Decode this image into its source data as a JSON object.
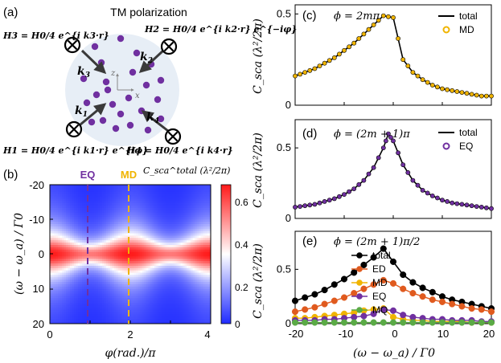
{
  "panel_labels": {
    "a": "(a)",
    "b": "(b)",
    "c": "(c)",
    "d": "(d)",
    "e": "(e)"
  },
  "schematic": {
    "title": "TM polarization",
    "H3": "H3 = H0/4 e^{i k3·r}",
    "H2": "H2 = H0/4 e^{i k2·r} e^{−iφ}",
    "H1": "H1 = H0/4 e^{i k1·r} e^{iφ}",
    "H4": "H4 = H0/4 e^{i k4·r}",
    "k1": "k",
    "k2": "k",
    "k3": "k",
    "k4": "k",
    "k1_sub": "1",
    "k2_sub": "2",
    "k3_sub": "3",
    "k4_sub": "4",
    "axis_z": "z",
    "axis_x": "x",
    "colors": {
      "disk": "#e7eef6",
      "atom": "#7030a0",
      "arrow": "#3a3a3a"
    }
  },
  "heatmap": {
    "colorbar_title": "C_sca^total (λ²/2π)",
    "ylabel": "(ω − ω_a) / Γ0",
    "xlabel": "φ(rad.)/π",
    "x_ticks": [
      "0",
      "2",
      "4"
    ],
    "y_ticks": [
      "-20",
      "-10",
      "0",
      "10",
      "20"
    ],
    "cbar_ticks": [
      "0.6",
      "0.4",
      "0.2",
      "0"
    ],
    "marker_EQ": "EQ",
    "marker_MD": "MD",
    "colors": {
      "low": "#1f2bff",
      "mid": "#ffffff",
      "high": "#ff1a1a",
      "EQ": "#7030a0",
      "MD": "#f0b400"
    }
  },
  "panel_c": {
    "annotation": "ϕ = 2mπ",
    "legend": [
      "total",
      "MD"
    ]
  },
  "panel_d": {
    "annotation": "ϕ = (2m + 1)π",
    "legend": [
      "total",
      "EQ"
    ]
  },
  "panel_e": {
    "annotation": "ϕ = (2m + 1)π/2",
    "legend": [
      "total",
      "ED",
      "MD",
      "EQ",
      "MQ"
    ]
  },
  "shared_axes": {
    "ylabel": "C_sca (λ²/2π)",
    "xlabel": "(ω − ω_a) / Γ0",
    "x_ticks": [
      "-20",
      "-10",
      "0",
      "10",
      "20"
    ]
  },
  "chart_data": [
    {
      "type": "heatmap",
      "x_range": [
        0,
        4
      ],
      "y_range": [
        -20,
        20
      ],
      "color_range": [
        0,
        0.65
      ],
      "title": "C_sca^total (λ²/2π)",
      "xlabel": "φ(rad.)/π",
      "ylabel": "(ω − ω_a) / Γ0",
      "markers": [
        {
          "label": "EQ",
          "x": 1
        },
        {
          "label": "MD",
          "x": 2
        }
      ]
    },
    {
      "type": "line",
      "title": "ϕ = 2mπ",
      "xlim": [
        -20,
        20
      ],
      "ylim": [
        0,
        0.55
      ],
      "y_ticks": [
        0,
        0.5
      ],
      "x": [
        -20,
        -18,
        -16,
        -14,
        -12,
        -10,
        -8,
        -6,
        -4,
        -2,
        0,
        2,
        4,
        6,
        8,
        10,
        12,
        14,
        16,
        18,
        20
      ],
      "series": [
        {
          "name": "total",
          "style": "line",
          "color": "#000000",
          "values": [
            0.16,
            0.18,
            0.2,
            0.23,
            0.26,
            0.3,
            0.34,
            0.39,
            0.44,
            0.49,
            0.48,
            0.25,
            0.18,
            0.14,
            0.11,
            0.09,
            0.08,
            0.07,
            0.06,
            0.05,
            0.05
          ]
        },
        {
          "name": "MD",
          "style": "markers",
          "color": "#f0b400",
          "values": [
            0.16,
            0.18,
            0.2,
            0.23,
            0.26,
            0.3,
            0.34,
            0.39,
            0.44,
            0.49,
            0.48,
            0.25,
            0.18,
            0.14,
            0.11,
            0.09,
            0.08,
            0.07,
            0.06,
            0.05,
            0.05
          ]
        }
      ]
    },
    {
      "type": "line",
      "title": "ϕ = (2m + 1)π",
      "xlim": [
        -20,
        20
      ],
      "ylim": [
        0,
        0.7
      ],
      "y_ticks": [
        0,
        0.5
      ],
      "x": [
        -20,
        -18,
        -16,
        -14,
        -12,
        -10,
        -8,
        -6,
        -4,
        -2,
        -1,
        0,
        2,
        4,
        6,
        8,
        10,
        12,
        14,
        16,
        18,
        20
      ],
      "series": [
        {
          "name": "total",
          "style": "line",
          "color": "#000000",
          "values": [
            0.08,
            0.09,
            0.1,
            0.12,
            0.14,
            0.17,
            0.21,
            0.27,
            0.36,
            0.5,
            0.6,
            0.55,
            0.38,
            0.27,
            0.2,
            0.16,
            0.13,
            0.11,
            0.1,
            0.09,
            0.08,
            0.07
          ]
        },
        {
          "name": "EQ",
          "style": "markers",
          "color": "#7030a0",
          "values": [
            0.08,
            0.09,
            0.1,
            0.12,
            0.14,
            0.17,
            0.21,
            0.27,
            0.36,
            0.5,
            0.6,
            0.55,
            0.38,
            0.27,
            0.2,
            0.16,
            0.13,
            0.11,
            0.1,
            0.09,
            0.08,
            0.07
          ]
        }
      ]
    },
    {
      "type": "line",
      "title": "ϕ = (2m + 1)π/2",
      "xlim": [
        -20,
        20
      ],
      "ylim": [
        0,
        0.85
      ],
      "y_ticks": [
        0,
        0.5
      ],
      "x": [
        -20,
        -18,
        -16,
        -14,
        -12,
        -10,
        -8,
        -6,
        -4,
        -2,
        0,
        2,
        4,
        6,
        8,
        10,
        12,
        14,
        16,
        18,
        20
      ],
      "series": [
        {
          "name": "total",
          "style": "line+markers",
          "color": "#000000",
          "values": [
            0.21,
            0.24,
            0.27,
            0.31,
            0.36,
            0.41,
            0.47,
            0.54,
            0.61,
            0.69,
            0.57,
            0.45,
            0.38,
            0.33,
            0.29,
            0.25,
            0.22,
            0.2,
            0.18,
            0.16,
            0.14
          ]
        },
        {
          "name": "ED",
          "style": "line+markers",
          "color": "#e05a1e",
          "values": [
            0.11,
            0.13,
            0.15,
            0.18,
            0.21,
            0.24,
            0.28,
            0.32,
            0.36,
            0.4,
            0.37,
            0.32,
            0.28,
            0.25,
            0.22,
            0.2,
            0.18,
            0.16,
            0.14,
            0.13,
            0.11
          ]
        },
        {
          "name": "MD",
          "style": "line+markers",
          "color": "#f0b400",
          "values": [
            0.05,
            0.05,
            0.06,
            0.07,
            0.08,
            0.09,
            0.1,
            0.12,
            0.13,
            0.14,
            0.06,
            0.04,
            0.03,
            0.03,
            0.02,
            0.02,
            0.02,
            0.02,
            0.01,
            0.01,
            0.01
          ]
        },
        {
          "name": "EQ",
          "style": "line+markers",
          "color": "#7030a0",
          "values": [
            0.03,
            0.03,
            0.03,
            0.04,
            0.04,
            0.05,
            0.06,
            0.07,
            0.09,
            0.13,
            0.12,
            0.08,
            0.06,
            0.05,
            0.04,
            0.04,
            0.03,
            0.03,
            0.03,
            0.02,
            0.02
          ]
        },
        {
          "name": "MQ",
          "style": "line+markers",
          "color": "#5aaa46",
          "values": [
            0.01,
            0.01,
            0.01,
            0.01,
            0.01,
            0.01,
            0.01,
            0.01,
            0.01,
            0.01,
            0.01,
            0.01,
            0.01,
            0.01,
            0.01,
            0.01,
            0.01,
            0.01,
            0.01,
            0.01,
            0.01
          ]
        }
      ]
    }
  ]
}
